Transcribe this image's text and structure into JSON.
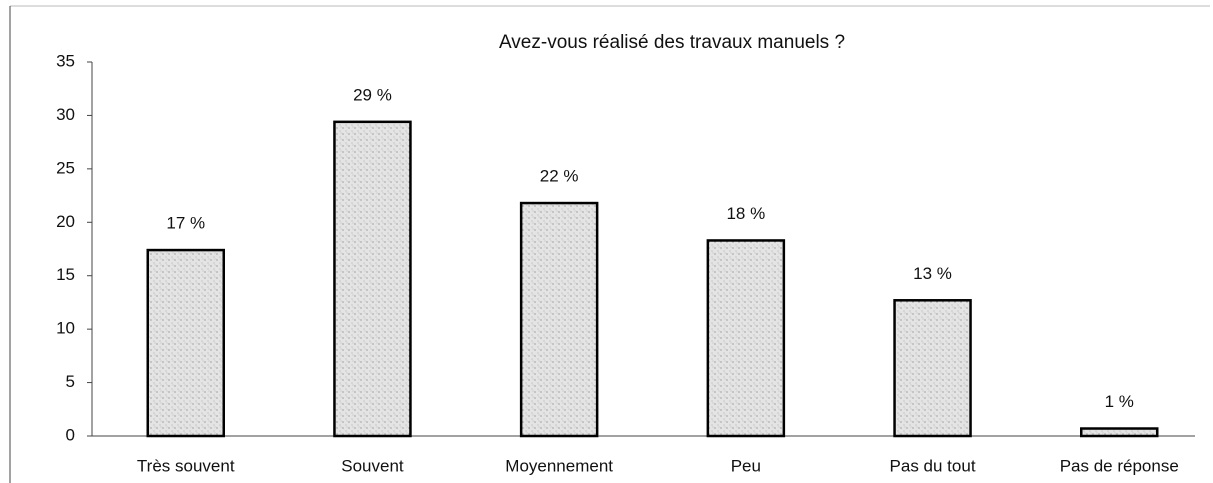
{
  "chart_data": {
    "type": "bar",
    "title": "Avez-vous réalisé des travaux manuels ?",
    "categories": [
      "Très souvent",
      "Souvent",
      "Moyennement",
      "Peu",
      "Pas du tout",
      "Pas de réponse"
    ],
    "values": [
      17.4,
      29.4,
      21.8,
      18.3,
      12.7,
      0.7
    ],
    "value_labels": [
      "17 %",
      "29 %",
      "22 %",
      "18 %",
      "13 %",
      "1 %"
    ],
    "color": "#e4e4e4",
    "ylim": [
      0,
      35
    ],
    "yticks": [
      0,
      5,
      10,
      15,
      20,
      25,
      30,
      35
    ],
    "grid": false
  }
}
